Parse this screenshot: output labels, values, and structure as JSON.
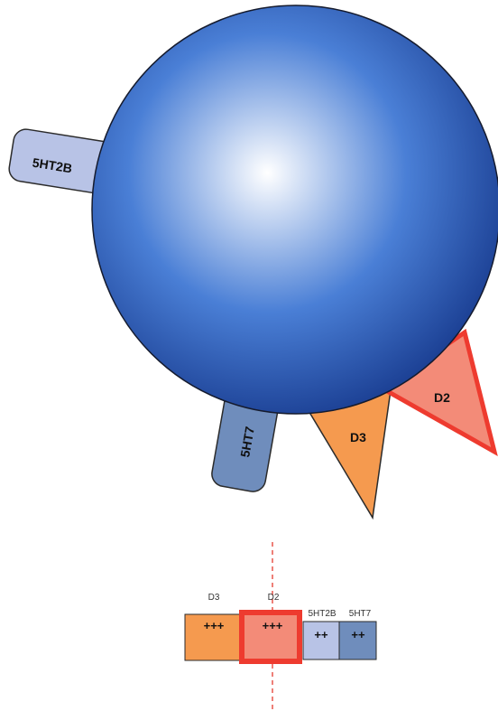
{
  "receptors": {
    "r5ht2b": {
      "label": "5HT2B",
      "color": "#b8c3e6"
    },
    "r5ht7": {
      "label": "5HT7",
      "color": "#6f8dbc"
    },
    "d3": {
      "label": "D3",
      "color": "#f59a4f"
    },
    "d2": {
      "label": "D2",
      "color": "#f38b78",
      "highlight": "#ee3b2f"
    }
  },
  "sphere": {
    "color_center": "#ffffff",
    "color_mid": "#4a7fd6",
    "color_edge": "#1b3f93"
  },
  "affinity_bar": {
    "cells": [
      {
        "header": "D3",
        "value": "+++",
        "color": "#f59a4f"
      },
      {
        "header": "D2",
        "value": "+++",
        "color": "#f38b78",
        "highlighted": true
      },
      {
        "header": "5HT2B",
        "value": "++",
        "color": "#b8c3e6"
      },
      {
        "header": "5HT7",
        "value": "++",
        "color": "#6f8dbc"
      }
    ]
  }
}
